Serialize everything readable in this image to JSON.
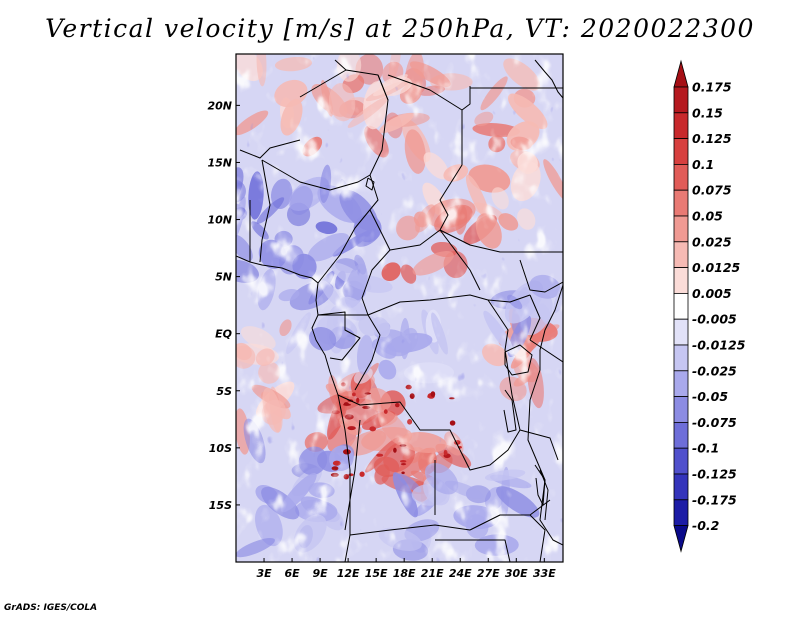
{
  "chart_data": {
    "type": "heatmap",
    "title": "Vertical velocity [m/s] at 250hPa, VT: 2020022300",
    "variable": "Vertical velocity",
    "units": "m/s",
    "level": "250hPa",
    "valid_time": "2020022300",
    "x_range": [
      0,
      35
    ],
    "y_range": [
      -20,
      24.5
    ],
    "x_ticks": [
      "3E",
      "6E",
      "9E",
      "12E",
      "15E",
      "18E",
      "21E",
      "24E",
      "27E",
      "30E",
      "33E"
    ],
    "x_tick_values": [
      3,
      6,
      9,
      12,
      15,
      18,
      21,
      24,
      27,
      30,
      33
    ],
    "y_ticks": [
      "20N",
      "15N",
      "10N",
      "5N",
      "EQ",
      "5S",
      "10S",
      "15S"
    ],
    "y_tick_values": [
      20,
      15,
      10,
      5,
      0,
      -5,
      -10,
      -15
    ],
    "colorbar": {
      "labels": [
        "0.175",
        "0.15",
        "0.125",
        "0.1",
        "0.075",
        "0.05",
        "0.025",
        "0.0125",
        "0.005",
        "-0.005",
        "-0.0125",
        "-0.025",
        "-0.05",
        "-0.075",
        "-0.1",
        "-0.125",
        "-0.175",
        "-0.2"
      ],
      "colors": [
        "#a50f15",
        "#b5191f",
        "#c8292c",
        "#d7403f",
        "#e15c58",
        "#e97a74",
        "#f09a93",
        "#f6bab4",
        "#fbdcd8",
        "#ffffff",
        "#e2e2f8",
        "#c6c6f2",
        "#a9a9ec",
        "#8c8ce3",
        "#6e6ed9",
        "#5050cc",
        "#3434bb",
        "#1c1ca6",
        "#0a0a8a"
      ]
    },
    "grid": false
  },
  "credit": "GrADS: IGES/COLA"
}
